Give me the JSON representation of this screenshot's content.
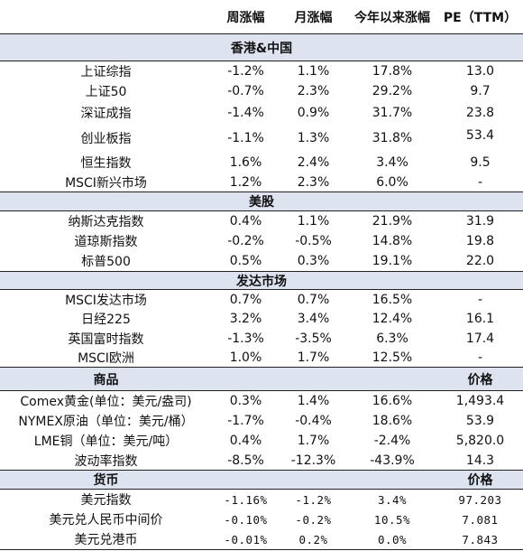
{
  "header": {
    "weekly": "周涨幅",
    "monthly": "月涨幅",
    "ytd": "今年以来涨幅",
    "pe": "PE（TTM）"
  },
  "sections": [
    {
      "title": "香港&中国",
      "right_label": "",
      "rows": [
        {
          "name": "上证综指",
          "weekly": "-1.2%",
          "monthly": "1.1%",
          "ytd": "17.8%",
          "pe": "13.0"
        },
        {
          "name": "上证50",
          "weekly": "-0.7%",
          "monthly": "2.3%",
          "ytd": "29.2%",
          "pe": "9.7"
        },
        {
          "name": "深证成指",
          "weekly": "-1.4%",
          "monthly": "0.9%",
          "ytd": "31.7%",
          "pe": "23.8"
        },
        {
          "name": "创业板指",
          "weekly": "-1.1%",
          "monthly": "1.3%",
          "ytd": "31.8%",
          "pe": "53.4"
        },
        {
          "name": "恒生指数",
          "weekly": "1.6%",
          "monthly": "2.4%",
          "ytd": "3.4%",
          "pe": "9.5"
        },
        {
          "name": "MSCI新兴市场",
          "weekly": "1.2%",
          "monthly": "2.3%",
          "ytd": "6.0%",
          "pe": "-"
        }
      ]
    },
    {
      "title": "美股",
      "right_label": "",
      "rows": [
        {
          "name": "纳斯达克指数",
          "weekly": "0.4%",
          "monthly": "1.1%",
          "ytd": "21.9%",
          "pe": "31.9"
        },
        {
          "name": "道琼斯指数",
          "weekly": "-0.2%",
          "monthly": "-0.5%",
          "ytd": "14.8%",
          "pe": "19.8"
        },
        {
          "name": "标普500",
          "weekly": "0.5%",
          "monthly": "0.3%",
          "ytd": "19.1%",
          "pe": "22.0"
        }
      ]
    },
    {
      "title": "发达市场",
      "right_label": "",
      "rows": [
        {
          "name": "MSCI发达市场",
          "weekly": "0.7%",
          "monthly": "0.7%",
          "ytd": "16.5%",
          "pe": "-"
        },
        {
          "name": "日经225",
          "weekly": "3.2%",
          "monthly": "3.4%",
          "ytd": "12.4%",
          "pe": "16.1"
        },
        {
          "name": "英国富时指数",
          "weekly": "-1.3%",
          "monthly": "-3.5%",
          "ytd": "6.3%",
          "pe": "17.4"
        },
        {
          "name": "MSCI欧洲",
          "weekly": "1.0%",
          "monthly": "1.7%",
          "ytd": "12.5%",
          "pe": "-"
        }
      ]
    },
    {
      "title": "商品",
      "right_label": "价格",
      "rows": [
        {
          "name": "Comex黄金(单位：美元/盎司)",
          "weekly": "0.3%",
          "monthly": "1.4%",
          "ytd": "16.6%",
          "pe": "1,493.4"
        },
        {
          "name": "NYMEX原油（单位：美元/桶）",
          "weekly": "-1.7%",
          "monthly": "-0.4%",
          "ytd": "18.6%",
          "pe": "53.9"
        },
        {
          "name": "LME铜（单位：美元/吨）",
          "weekly": "0.4%",
          "monthly": "1.7%",
          "ytd": "-2.4%",
          "pe": "5,820.0"
        },
        {
          "name": "波动率指数",
          "weekly": "-8.5%",
          "monthly": "-12.3%",
          "ytd": "-43.9%",
          "pe": "14.3"
        }
      ]
    },
    {
      "title": "货币",
      "right_label": "价格",
      "rows": [
        {
          "name": "美元指数",
          "weekly": "-1.16%",
          "monthly": "-1.2%",
          "ytd": "3.4%",
          "pe": "97.203"
        },
        {
          "name": "美元兑人民币中间价",
          "weekly": "-0.10%",
          "monthly": "-0.2%",
          "ytd": "10.5%",
          "pe": "7.081"
        },
        {
          "name": "美元兑港币",
          "weekly": "-0.01%",
          "monthly": "0.2%",
          "ytd": "0.0%",
          "pe": "7.843"
        }
      ]
    }
  ]
}
